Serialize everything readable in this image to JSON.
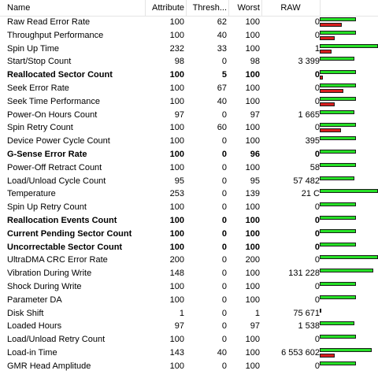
{
  "columns": {
    "name": "Name",
    "attribute": "Attribute",
    "threshold": "Thresh...",
    "worst": "Worst",
    "raw": "RAW"
  },
  "colors": {
    "bar_green": "#26e026",
    "bar_red": "#d81e1e"
  },
  "rows": [
    {
      "name": "Raw Read Error Rate",
      "attribute": "100",
      "threshold": "62",
      "worst": "100",
      "raw": "0",
      "bold": false,
      "green": 0.62,
      "red": 0.38
    },
    {
      "name": "Throughput Performance",
      "attribute": "100",
      "threshold": "40",
      "worst": "100",
      "raw": "0",
      "bold": false,
      "green": 0.62,
      "red": 0.25
    },
    {
      "name": "Spin Up Time",
      "attribute": "232",
      "threshold": "33",
      "worst": "100",
      "raw": "1",
      "bold": false,
      "green": 1.0,
      "red": 0.2
    },
    {
      "name": "Start/Stop Count",
      "attribute": "98",
      "threshold": "0",
      "worst": "98",
      "raw": "3 399",
      "bold": false,
      "green": 0.6,
      "red": 0
    },
    {
      "name": "Reallocated Sector Count",
      "attribute": "100",
      "threshold": "5",
      "worst": "100",
      "raw": "0",
      "bold": true,
      "green": 0.62,
      "red": 0.05
    },
    {
      "name": "Seek Error Rate",
      "attribute": "100",
      "threshold": "67",
      "worst": "100",
      "raw": "0",
      "bold": false,
      "green": 0.62,
      "red": 0.4
    },
    {
      "name": "Seek Time Performance",
      "attribute": "100",
      "threshold": "40",
      "worst": "100",
      "raw": "0",
      "bold": false,
      "green": 0.62,
      "red": 0.25
    },
    {
      "name": "Power-On Hours Count",
      "attribute": "97",
      "threshold": "0",
      "worst": "97",
      "raw": "1 665",
      "bold": false,
      "green": 0.6,
      "red": 0
    },
    {
      "name": "Spin Retry Count",
      "attribute": "100",
      "threshold": "60",
      "worst": "100",
      "raw": "0",
      "bold": false,
      "green": 0.62,
      "red": 0.37
    },
    {
      "name": "Device Power Cycle Count",
      "attribute": "100",
      "threshold": "0",
      "worst": "100",
      "raw": "395",
      "bold": false,
      "green": 0.62,
      "red": 0
    },
    {
      "name": "G-Sense Error Rate",
      "attribute": "100",
      "threshold": "0",
      "worst": "96",
      "raw": "0",
      "bold": true,
      "green": 0.62,
      "red": 0
    },
    {
      "name": "Power-Off Retract Count",
      "attribute": "100",
      "threshold": "0",
      "worst": "100",
      "raw": "58",
      "bold": false,
      "green": 0.62,
      "red": 0
    },
    {
      "name": "Load/Unload Cycle Count",
      "attribute": "95",
      "threshold": "0",
      "worst": "95",
      "raw": "57 482",
      "bold": false,
      "green": 0.59,
      "red": 0
    },
    {
      "name": "Temperature",
      "attribute": "253",
      "threshold": "0",
      "worst": "139",
      "raw": "21 C",
      "bold": false,
      "green": 1.0,
      "red": 0
    },
    {
      "name": "Spin Up Retry Count",
      "attribute": "100",
      "threshold": "0",
      "worst": "100",
      "raw": "0",
      "bold": false,
      "green": 0.62,
      "red": 0
    },
    {
      "name": "Reallocation Events Count",
      "attribute": "100",
      "threshold": "0",
      "worst": "100",
      "raw": "0",
      "bold": true,
      "green": 0.62,
      "red": 0
    },
    {
      "name": "Current Pending Sector Count",
      "attribute": "100",
      "threshold": "0",
      "worst": "100",
      "raw": "0",
      "bold": true,
      "green": 0.62,
      "red": 0
    },
    {
      "name": "Uncorrectable Sector Count",
      "attribute": "100",
      "threshold": "0",
      "worst": "100",
      "raw": "0",
      "bold": true,
      "green": 0.62,
      "red": 0
    },
    {
      "name": "UltraDMA CRC Error Rate",
      "attribute": "200",
      "threshold": "0",
      "worst": "200",
      "raw": "0",
      "bold": false,
      "green": 1.0,
      "red": 0
    },
    {
      "name": "Vibration During Write",
      "attribute": "148",
      "threshold": "0",
      "worst": "100",
      "raw": "131 228",
      "bold": false,
      "green": 0.92,
      "red": 0
    },
    {
      "name": "Shock During Write",
      "attribute": "100",
      "threshold": "0",
      "worst": "100",
      "raw": "0",
      "bold": false,
      "green": 0.62,
      "red": 0
    },
    {
      "name": "Parameter DA",
      "attribute": "100",
      "threshold": "0",
      "worst": "100",
      "raw": "0",
      "bold": false,
      "green": 0.62,
      "red": 0
    },
    {
      "name": "Disk Shift",
      "attribute": "1",
      "threshold": "0",
      "worst": "1",
      "raw": "75 671",
      "bold": false,
      "green": 0.02,
      "red": 0
    },
    {
      "name": "Loaded Hours",
      "attribute": "97",
      "threshold": "0",
      "worst": "97",
      "raw": "1 538",
      "bold": false,
      "green": 0.6,
      "red": 0
    },
    {
      "name": "Load/Unload Retry Count",
      "attribute": "100",
      "threshold": "0",
      "worst": "100",
      "raw": "0",
      "bold": false,
      "green": 0.62,
      "red": 0
    },
    {
      "name": "Load-in Time",
      "attribute": "143",
      "threshold": "40",
      "worst": "100",
      "raw": "6 553 602",
      "bold": false,
      "green": 0.89,
      "red": 0.25
    },
    {
      "name": "GMR Head Amplitude",
      "attribute": "100",
      "threshold": "0",
      "worst": "100",
      "raw": "0",
      "bold": false,
      "green": 0.62,
      "red": 0
    }
  ]
}
